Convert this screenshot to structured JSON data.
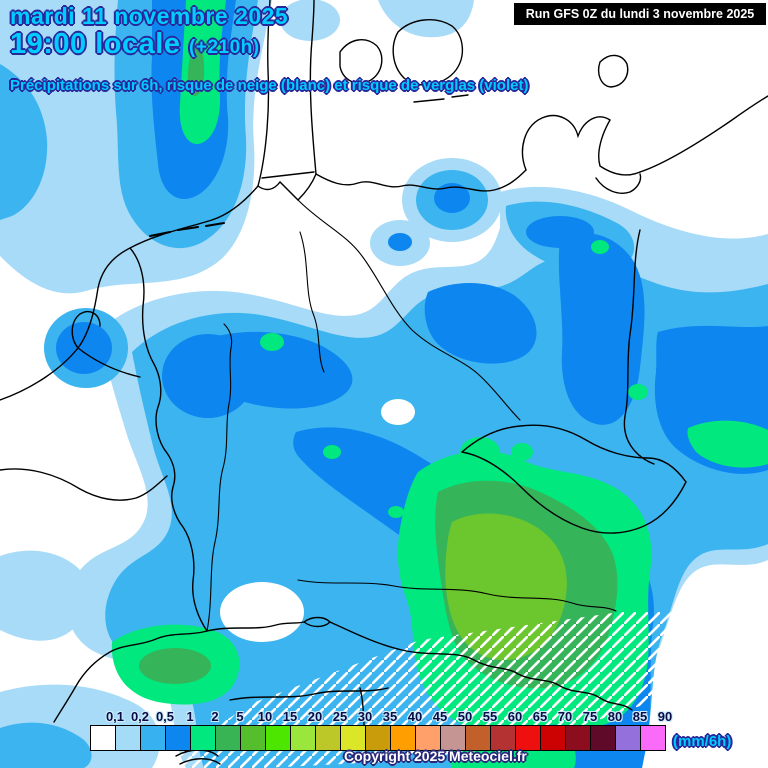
{
  "header": {
    "date_line": "mardi 11 novembre 2025",
    "time_line": "19:00 locale",
    "offset": "(+210h)",
    "subtitle": "Précipitations sur 6h, risque de neige (blanc) et risque de verglas (violet)",
    "run_info": "Run GFS 0Z du lundi 3 novembre 2025",
    "title_color": "#00ccff",
    "outline_color": "#28289b"
  },
  "legend": {
    "unit": "(mm/6h)",
    "steps": [
      {
        "label": "0,1",
        "color": "#ffffff"
      },
      {
        "label": "0,2",
        "color": "#a4dcf7"
      },
      {
        "label": "0,5",
        "color": "#38b1f0"
      },
      {
        "label": "1",
        "color": "#0d86f0"
      },
      {
        "label": "2",
        "color": "#00e87e"
      },
      {
        "label": "5",
        "color": "#38b455"
      },
      {
        "label": "10",
        "color": "#55be2d"
      },
      {
        "label": "15",
        "color": "#4ce600"
      },
      {
        "label": "20",
        "color": "#9be63c"
      },
      {
        "label": "25",
        "color": "#bcc828"
      },
      {
        "label": "30",
        "color": "#dce628"
      },
      {
        "label": "35",
        "color": "#c89c0a"
      },
      {
        "label": "40",
        "color": "#ff9e00"
      },
      {
        "label": "45",
        "color": "#ff9f69"
      },
      {
        "label": "50",
        "color": "#c59594"
      },
      {
        "label": "55",
        "color": "#c2602c"
      },
      {
        "label": "60",
        "color": "#b43232"
      },
      {
        "label": "65",
        "color": "#ee0f0f"
      },
      {
        "label": "70",
        "color": "#cc0202"
      },
      {
        "label": "75",
        "color": "#8c0e1e"
      },
      {
        "label": "80",
        "color": "#5f0a28"
      },
      {
        "label": "85",
        "color": "#9370db"
      },
      {
        "label": "90",
        "color": "#fa6bfa"
      }
    ]
  },
  "map": {
    "precipitation_palette": {
      "very_light": "#a7dbf7",
      "light": "#3cb4f0",
      "moderate": "#0d86f0",
      "heavy": "#00e87e",
      "heavier": "#35b45a",
      "intense": "#6cc62d"
    },
    "snow_hatch_color": "#ffffff",
    "border_color": "#000000"
  },
  "footer": {
    "copyright": "Copyright 2025 Meteociel.fr"
  }
}
